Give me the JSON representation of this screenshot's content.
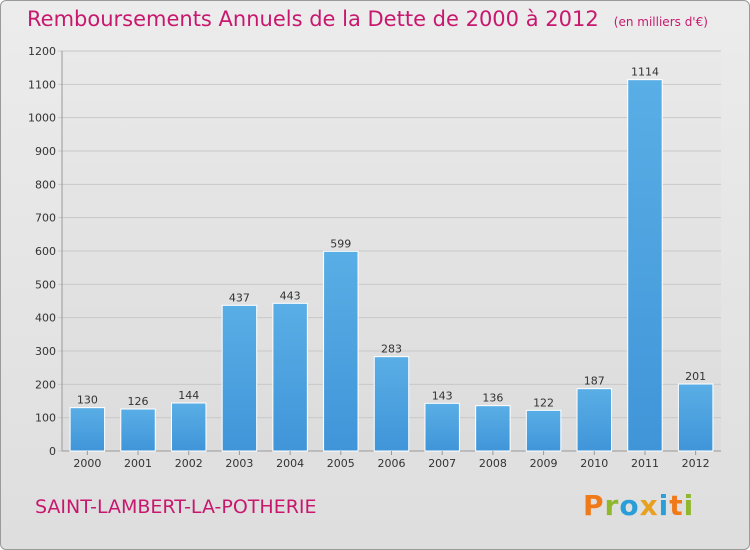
{
  "title": "Remboursements Annuels de la Dette de 2000 à 2012",
  "unit": "(en milliers d'€)",
  "commune": "SAINT-LAMBERT-LA-POTHERIE",
  "logo": {
    "text": "Proxiti",
    "colors": [
      "#f07a1a",
      "#8fb82c",
      "#2a9ed8",
      "#e8a020",
      "#2a9ed8",
      "#f07a1a",
      "#8fb82c"
    ]
  },
  "chart_data": {
    "type": "bar",
    "title": "Remboursements Annuels de la Dette de 2000 à 2012",
    "xlabel": "",
    "ylabel": "",
    "categories": [
      "2000",
      "2001",
      "2002",
      "2003",
      "2004",
      "2005",
      "2006",
      "2007",
      "2008",
      "2009",
      "2010",
      "2011",
      "2012"
    ],
    "values": [
      130,
      126,
      144,
      437,
      443,
      599,
      283,
      143,
      136,
      122,
      187,
      1114,
      201
    ],
    "ylim": [
      0,
      1200
    ],
    "yticks": [
      0,
      100,
      200,
      300,
      400,
      500,
      600,
      700,
      800,
      900,
      1000,
      1100,
      1200
    ],
    "grid": true,
    "bar_color": "#3f95d8",
    "grid_color": "#c8c8c8"
  }
}
